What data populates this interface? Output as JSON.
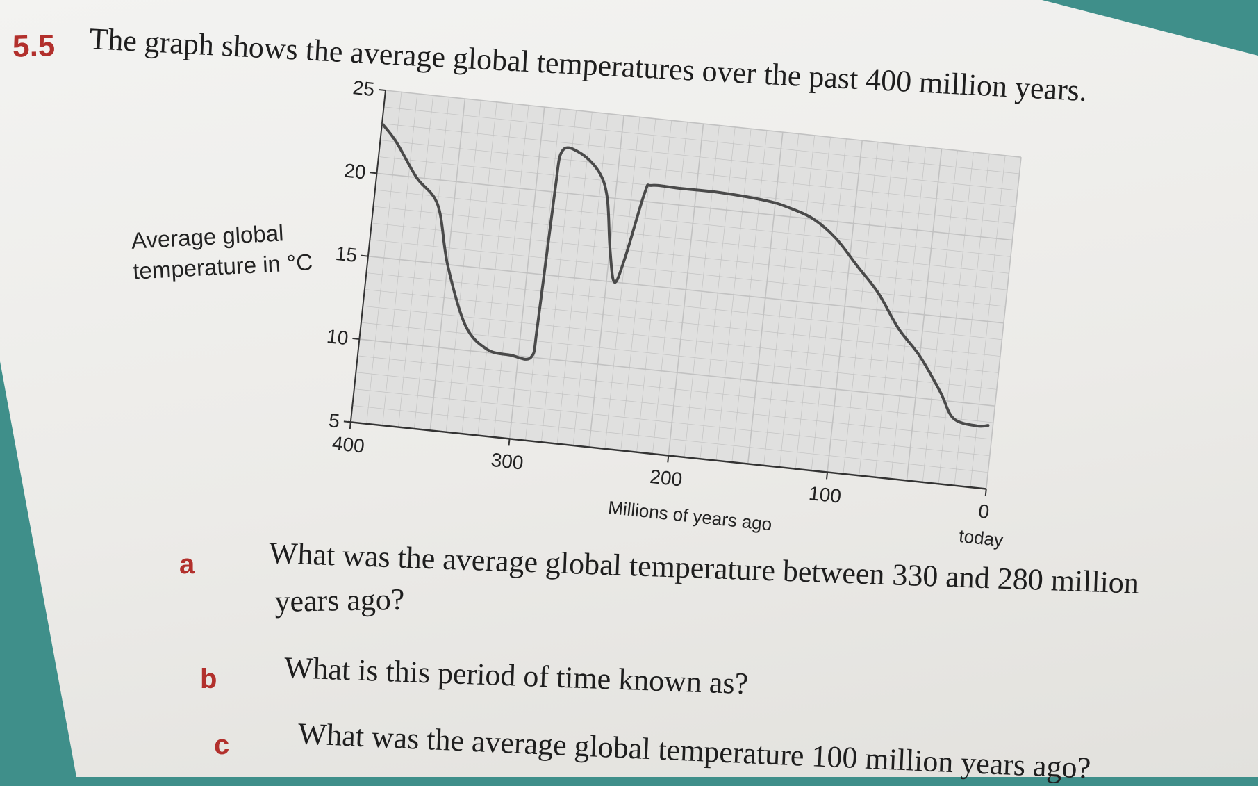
{
  "question": {
    "number": "5.5",
    "intro": "The graph shows the average global temperatures over the past 400 million years.",
    "parts": [
      {
        "letter": "a",
        "line1": "What was the average global temperature between 330 and 280 million",
        "line2": "years ago?"
      },
      {
        "letter": "b",
        "line1": "What is this period of time known as?"
      },
      {
        "letter": "c",
        "line1": "What was the average global temperature 100 million years ago?"
      }
    ]
  },
  "chart_data": {
    "type": "line",
    "ylabel_line1": "Average global",
    "ylabel_line2": "temperature in °C",
    "xlabel": "Millions of years ago",
    "x_today_label": "today",
    "xlim": [
      400,
      0
    ],
    "ylim": [
      5,
      25
    ],
    "x_ticks": [
      400,
      300,
      200,
      100,
      0
    ],
    "y_ticks": [
      25,
      20,
      15,
      10,
      5
    ],
    "grid": true,
    "series": [
      {
        "x": [
          400,
          390,
          375,
          360,
          350,
          335,
          320,
          305,
          292,
          290,
          288,
          286,
          275,
          262,
          255,
          250,
          245,
          240,
          232,
          228,
          210,
          185,
          155,
          140,
          125,
          110,
          95,
          80,
          65,
          50,
          35,
          25,
          10,
          3
        ],
        "y": [
          23,
          22,
          20,
          18.5,
          15,
          11.5,
          10.2,
          10,
          10,
          12,
          20,
          22.5,
          22.5,
          21.5,
          20,
          17,
          15,
          16.5,
          20.5,
          21,
          21,
          21,
          20.8,
          20.5,
          20,
          19,
          17.5,
          16,
          14,
          12.5,
          10.5,
          9,
          8.7,
          8.8
        ]
      }
    ]
  },
  "colors": {
    "question_number": "#b2302c",
    "curve": "#4a4a4a",
    "grid": "#c2c2c2",
    "plot_background": "#e0e0df"
  }
}
